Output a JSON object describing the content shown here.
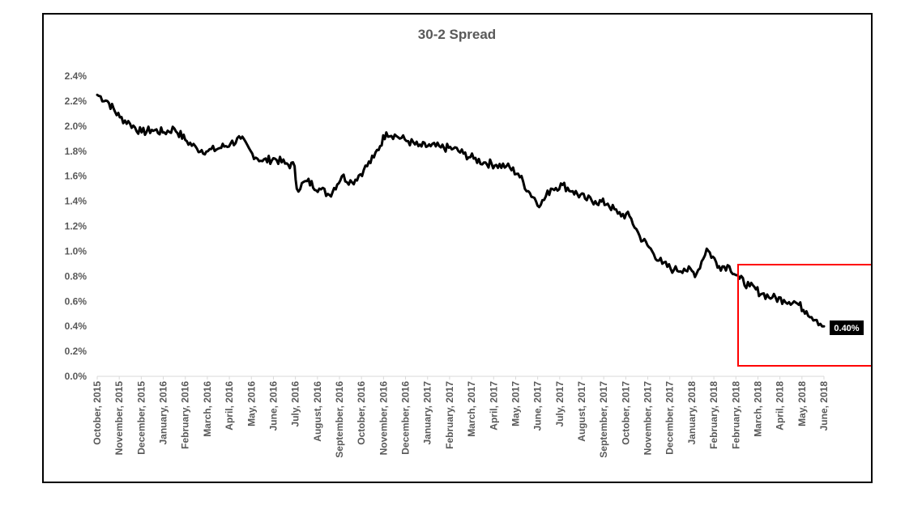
{
  "chart_data": {
    "type": "line",
    "title": "30-2 Spread",
    "xlabel": "",
    "ylabel": "",
    "ylim": [
      0,
      2.4
    ],
    "y_tick_labels": [
      "0.0%",
      "0.2%",
      "0.4%",
      "0.6%",
      "0.8%",
      "1.0%",
      "1.2%",
      "1.4%",
      "1.6%",
      "1.8%",
      "2.0%",
      "2.2%",
      "2.4%"
    ],
    "x_tick_labels": [
      "October, 2015",
      "November, 2015",
      "December, 2015",
      "January, 2016",
      "February, 2016",
      "March, 2016",
      "April, 2016",
      "May, 2016",
      "June, 2016",
      "July, 2016",
      "August, 2016",
      "September, 2016",
      "October, 2016",
      "November, 2016",
      "December, 2016",
      "January, 2017",
      "February, 2017",
      "March, 2017",
      "April, 2017",
      "May, 2017",
      "June, 2017",
      "July, 2017",
      "August, 2017",
      "September, 2017",
      "October, 2017",
      "November, 2017",
      "December, 2017",
      "January, 2018",
      "February, 2018",
      "February, 2018",
      "March, 2018",
      "April, 2018",
      "May, 2018",
      "June, 2018"
    ],
    "grid": false,
    "legend": "none",
    "line_color": "#000000",
    "highlight_box_color": "#ff0000",
    "end_label": "0.40%",
    "series": [
      {
        "x": [
          "2015-10-01",
          "2015-10-15",
          "2015-11-01",
          "2015-11-15",
          "2015-12-01",
          "2015-12-15",
          "2016-01-01",
          "2016-01-15",
          "2016-02-01",
          "2016-02-15",
          "2016-03-01",
          "2016-03-15",
          "2016-04-01",
          "2016-04-15",
          "2016-05-01",
          "2016-05-15",
          "2016-06-01",
          "2016-06-15",
          "2016-06-28",
          "2016-07-01",
          "2016-07-15",
          "2016-08-01",
          "2016-08-15",
          "2016-09-01",
          "2016-09-15",
          "2016-10-01",
          "2016-10-15",
          "2016-11-01",
          "2016-11-15",
          "2016-12-01",
          "2016-12-15",
          "2017-01-01",
          "2017-01-15",
          "2017-02-01",
          "2017-02-15",
          "2017-03-01",
          "2017-03-15",
          "2017-04-01",
          "2017-04-15",
          "2017-05-01",
          "2017-05-15",
          "2017-06-01",
          "2017-06-15",
          "2017-07-01",
          "2017-07-15",
          "2017-08-01",
          "2017-08-15",
          "2017-09-01",
          "2017-09-15",
          "2017-10-01",
          "2017-10-15",
          "2017-11-01",
          "2017-11-15",
          "2017-12-01",
          "2017-12-15",
          "2018-01-01",
          "2018-01-15",
          "2018-02-01",
          "2018-02-15",
          "2018-03-01",
          "2018-03-15",
          "2018-04-01",
          "2018-04-15",
          "2018-05-01",
          "2018-05-15",
          "2018-06-01",
          "2018-06-15",
          "2018-06-25"
        ],
        "values": [
          2.25,
          2.2,
          2.07,
          2.02,
          1.95,
          1.97,
          1.95,
          1.98,
          1.88,
          1.82,
          1.8,
          1.82,
          1.86,
          1.9,
          1.78,
          1.72,
          1.74,
          1.7,
          1.68,
          1.5,
          1.56,
          1.5,
          1.45,
          1.6,
          1.55,
          1.65,
          1.75,
          1.95,
          1.92,
          1.88,
          1.84,
          1.84,
          1.83,
          1.82,
          1.78,
          1.74,
          1.71,
          1.69,
          1.68,
          1.62,
          1.48,
          1.37,
          1.5,
          1.53,
          1.48,
          1.42,
          1.4,
          1.38,
          1.3,
          1.28,
          1.12,
          1.0,
          0.9,
          0.85,
          0.86,
          0.82,
          1.02,
          0.88,
          0.88,
          0.78,
          0.72,
          0.66,
          0.63,
          0.61,
          0.6,
          0.52,
          0.45,
          0.4
        ]
      }
    ]
  }
}
